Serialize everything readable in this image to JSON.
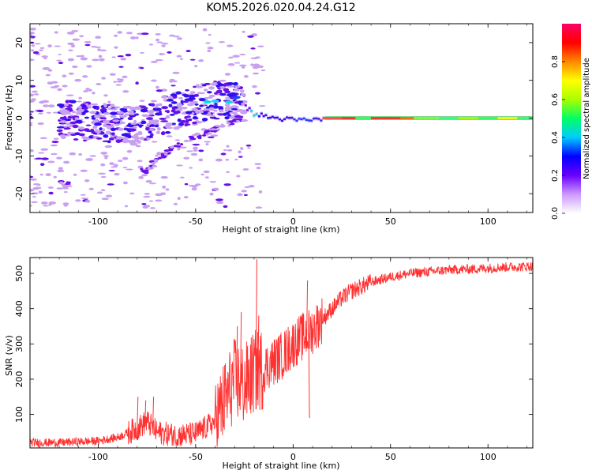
{
  "title": "KOM5.2026.020.04.24.G12",
  "chart_data": [
    {
      "type": "heatmap",
      "xlabel": "Height of straight line (km)",
      "ylabel": "Frequency (Hz)",
      "xlim": [
        -135,
        123
      ],
      "ylim": [
        -25,
        25
      ],
      "xticks": [
        -100,
        -50,
        0,
        50,
        100
      ],
      "yticks": [
        -20,
        -10,
        0,
        10,
        20
      ],
      "xtick_labels": [
        "-100",
        "-50",
        "0",
        "50",
        "100"
      ],
      "ytick_labels": [
        "-20",
        "-10",
        "0",
        "10",
        "20"
      ],
      "description_series": [
        {
          "name": "main ridge",
          "x": [
            -120,
            -100,
            -80,
            -60,
            -45,
            -35,
            -28,
            -20,
            -10,
            0,
            10,
            20,
            40,
            60,
            80,
            100,
            123
          ],
          "y": [
            0,
            -1,
            -2,
            2,
            4,
            5,
            4,
            1,
            0,
            -0.5,
            -0.5,
            0,
            0,
            0,
            0,
            0,
            0
          ]
        },
        {
          "name": "lower branch",
          "x": [
            -75,
            -65,
            -55,
            -45,
            -35,
            -28
          ],
          "y": [
            -14,
            -9,
            -6,
            -4,
            -2,
            0
          ]
        }
      ],
      "colorbar": {
        "label": "Normalized spectral amplitude",
        "range": [
          0,
          1
        ],
        "ticks": [
          0.0,
          0.2,
          0.4,
          0.6,
          0.8
        ],
        "tick_labels": [
          "0.0",
          "0.2",
          "0.4",
          "0.6",
          "0.8"
        ],
        "colors": [
          "#ffffff",
          "#cc99ff",
          "#6a00ff",
          "#0000ff",
          "#00ccff",
          "#00ff66",
          "#aaff00",
          "#ffff00",
          "#ff8800",
          "#ff0000",
          "#ff0066"
        ]
      }
    },
    {
      "type": "line",
      "xlabel": "Height of straight line (km)",
      "ylabel": "SNR (v/v)",
      "xlim": [
        -135,
        123
      ],
      "ylim": [
        5,
        545
      ],
      "xticks": [
        -100,
        -50,
        0,
        50,
        100
      ],
      "yticks": [
        100,
        200,
        300,
        400,
        500
      ],
      "xtick_labels": [
        "-100",
        "-50",
        "0",
        "50",
        "100"
      ],
      "ytick_labels": [
        "100",
        "200",
        "300",
        "400",
        "500"
      ],
      "series": [
        {
          "name": "SNR",
          "color": "#ff3030",
          "x": [
            -135,
            -120,
            -100,
            -90,
            -80,
            -75,
            -70,
            -60,
            -50,
            -40,
            -35,
            -30,
            -25,
            -20,
            -15,
            -10,
            -5,
            0,
            5,
            8,
            10,
            15,
            20,
            25,
            30,
            40,
            50,
            60,
            70,
            80,
            90,
            100,
            110,
            123
          ],
          "y": [
            20,
            20,
            25,
            35,
            60,
            80,
            50,
            40,
            45,
            80,
            140,
            200,
            180,
            220,
            230,
            250,
            270,
            300,
            320,
            330,
            340,
            370,
            400,
            430,
            450,
            475,
            490,
            500,
            505,
            510,
            512,
            515,
            518,
            520
          ]
        }
      ],
      "spikes": [
        {
          "x": -80,
          "y": 150
        },
        {
          "x": -76,
          "y": 140
        },
        {
          "x": -72,
          "y": 150
        },
        {
          "x": -29,
          "y": 350
        },
        {
          "x": -27,
          "y": 390
        },
        {
          "x": -19,
          "y": 540
        },
        {
          "x": -18,
          "y": 380
        },
        {
          "x": 7,
          "y": 480
        },
        {
          "x": 8,
          "y": 90
        }
      ]
    }
  ]
}
